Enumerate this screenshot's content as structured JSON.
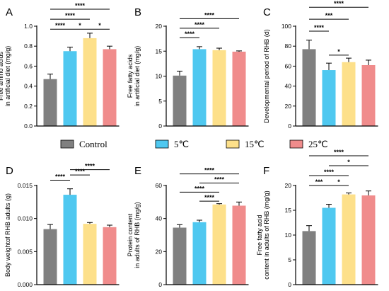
{
  "colors": {
    "Control": "#808080",
    "5°C": "#4fc8f0",
    "15°C": "#fde08a",
    "25°C": "#f08c8c"
  },
  "legend": [
    {
      "label": "Control",
      "key": "Control"
    },
    {
      "label": "5℃",
      "key": "5°C"
    },
    {
      "label": "15℃",
      "key": "15°C"
    },
    {
      "label": "25℃",
      "key": "25°C"
    }
  ],
  "chart_data": [
    {
      "panel": "A",
      "type": "bar",
      "categories": [
        "Control",
        "5°C",
        "15°C",
        "25°C"
      ],
      "values": [
        0.47,
        0.75,
        0.88,
        0.77
      ],
      "errors": [
        0.05,
        0.04,
        0.05,
        0.03
      ],
      "ylabel_lines": [
        "Free amino acids",
        "in artificial diet (mg/g)"
      ],
      "ylim": [
        0,
        1.0
      ],
      "yticks": [
        0.0,
        0.2,
        0.4,
        0.6,
        0.8,
        1.0
      ],
      "ytick_labels": [
        "0.0",
        "0.2",
        "0.4",
        "0.6",
        "0.8",
        "1.0"
      ],
      "sig": [
        {
          "from": 0,
          "to": 3,
          "label": "****",
          "y": 1.17
        },
        {
          "from": 0,
          "to": 2,
          "label": "****",
          "y": 1.07
        },
        {
          "from": 0,
          "to": 1,
          "label": "****",
          "y": 0.97
        },
        {
          "from": 1,
          "to": 2,
          "label": "*",
          "y": 0.97
        },
        {
          "from": 2,
          "to": 3,
          "label": "*",
          "y": 0.97
        }
      ]
    },
    {
      "panel": "B",
      "type": "bar",
      "categories": [
        "Control",
        "5°C",
        "15°C",
        "25°C"
      ],
      "values": [
        10.1,
        15.4,
        15.2,
        14.9
      ],
      "errors": [
        0.9,
        0.5,
        0.4,
        0.15
      ],
      "ylabel_lines": [
        "Free fatty acids",
        "in artificial diet (mg/g)"
      ],
      "ylim": [
        0,
        20
      ],
      "yticks": [
        0,
        5,
        10,
        15,
        20
      ],
      "ytick_labels": [
        "0",
        "5",
        "10",
        "15",
        "20"
      ],
      "sig": [
        {
          "from": 0,
          "to": 3,
          "label": "****",
          "y": 21.5
        },
        {
          "from": 0,
          "to": 2,
          "label": "****",
          "y": 19.6
        },
        {
          "from": 0,
          "to": 1,
          "label": "****",
          "y": 17.7
        }
      ]
    },
    {
      "panel": "C",
      "type": "bar",
      "categories": [
        "Control",
        "5°C",
        "15°C",
        "25°C"
      ],
      "values": [
        77,
        56,
        64,
        61
      ],
      "errors": [
        9,
        7,
        4,
        5
      ],
      "ylabel_lines": [
        "Developmental period of RHB (d)"
      ],
      "ylim": [
        0,
        100
      ],
      "yticks": [
        0,
        20,
        40,
        60,
        80,
        100
      ],
      "ytick_labels": [
        "0",
        "20",
        "40",
        "60",
        "80",
        "100"
      ],
      "sig": [
        {
          "from": 0,
          "to": 3,
          "label": "****",
          "y": 119
        },
        {
          "from": 0,
          "to": 2,
          "label": "***",
          "y": 107
        },
        {
          "from": 0,
          "to": 1,
          "label": "****",
          "y": 95
        },
        {
          "from": 1,
          "to": 2,
          "label": "*",
          "y": 71
        }
      ]
    },
    {
      "panel": "D",
      "type": "bar",
      "categories": [
        "Control",
        "5°C",
        "15°C",
        "25°C"
      ],
      "values": [
        0.0084,
        0.0136,
        0.0092,
        0.0087
      ],
      "errors": [
        0.0007,
        0.0009,
        0.0002,
        0.0003
      ],
      "ylabel_lines": [
        "Body weightof RHB adults (g)"
      ],
      "ylim": [
        0,
        0.015
      ],
      "yticks": [
        0,
        0.005,
        0.01,
        0.015
      ],
      "ytick_labels": [
        "0.000",
        "0.005",
        "0.010",
        "0.015"
      ],
      "sig": [
        {
          "from": 0,
          "to": 1,
          "label": "****",
          "y": 0.0158
        },
        {
          "from": 1,
          "to": 3,
          "label": "****",
          "y": 0.0174
        },
        {
          "from": 1,
          "to": 2,
          "label": "****",
          "y": 0.0166
        }
      ]
    },
    {
      "panel": "E",
      "type": "bar",
      "categories": [
        "Control",
        "5°C",
        "15°C",
        "25°C"
      ],
      "values": [
        34.5,
        37.8,
        48.5,
        47.8
      ],
      "errors": [
        1.8,
        1.2,
        0.5,
        2.2
      ],
      "ylabel_lines": [
        "Protein content",
        "in adults of RHB (mg/g)"
      ],
      "ylim": [
        0,
        60
      ],
      "yticks": [
        0,
        20,
        40,
        60
      ],
      "ytick_labels": [
        "0",
        "20",
        "40",
        "60"
      ],
      "sig": [
        {
          "from": 0,
          "to": 3,
          "label": "****",
          "y": 67
        },
        {
          "from": 1,
          "to": 3,
          "label": "****",
          "y": 61.5
        },
        {
          "from": 0,
          "to": 2,
          "label": "****",
          "y": 56
        },
        {
          "from": 1,
          "to": 2,
          "label": "****",
          "y": 50.5
        }
      ]
    },
    {
      "panel": "F",
      "type": "bar",
      "categories": [
        "Control",
        "5°C",
        "15°C",
        "25°C"
      ],
      "values": [
        10.8,
        15.5,
        18.2,
        18.0
      ],
      "errors": [
        1.1,
        0.7,
        0.3,
        0.9
      ],
      "ylabel_lines": [
        "Free fatty acid",
        "content in adults of RHB (mg/g)"
      ],
      "ylim": [
        0,
        20
      ],
      "yticks": [
        0,
        5,
        10,
        15,
        20
      ],
      "ytick_labels": [
        "0",
        "5",
        "10",
        "15",
        "20"
      ],
      "sig": [
        {
          "from": 0,
          "to": 3,
          "label": "****",
          "y": 26
        },
        {
          "from": 1,
          "to": 3,
          "label": "*",
          "y": 24
        },
        {
          "from": 0,
          "to": 2,
          "label": "****",
          "y": 22
        },
        {
          "from": 0,
          "to": 1,
          "label": "***",
          "y": 20
        },
        {
          "from": 1,
          "to": 2,
          "label": "*",
          "y": 20
        }
      ]
    }
  ]
}
